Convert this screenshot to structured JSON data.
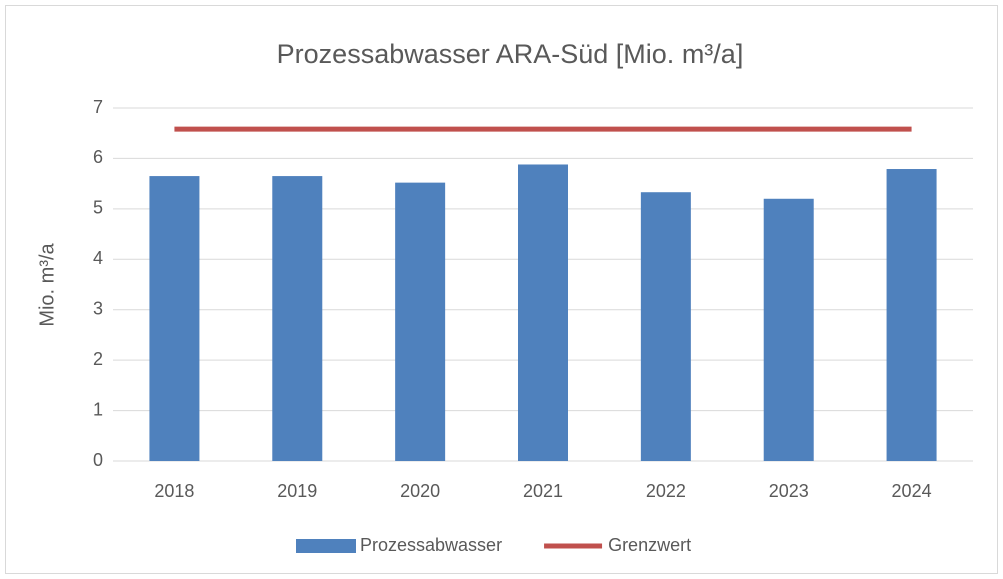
{
  "chart_data": {
    "type": "bar",
    "title": "Prozessabwasser ARA-Süd [Mio. m³/a]",
    "y_label": "Mio. m³/a",
    "categories": [
      "2018",
      "2019",
      "2020",
      "2021",
      "2022",
      "2023",
      "2024"
    ],
    "series": [
      {
        "name": "Prozessabwasser",
        "type": "bar",
        "color": "#4f81bd",
        "values": [
          5.65,
          5.65,
          5.52,
          5.88,
          5.33,
          5.2,
          5.79
        ]
      },
      {
        "name": "Grenzwert",
        "type": "line",
        "color": "#c0504d",
        "values": [
          6.58,
          6.58,
          6.58,
          6.58,
          6.58,
          6.58,
          6.58
        ]
      }
    ],
    "ylim": [
      0,
      7
    ],
    "yticks": [
      0,
      1,
      2,
      3,
      4,
      5,
      6,
      7
    ],
    "grid": true,
    "legend": "bottom"
  }
}
